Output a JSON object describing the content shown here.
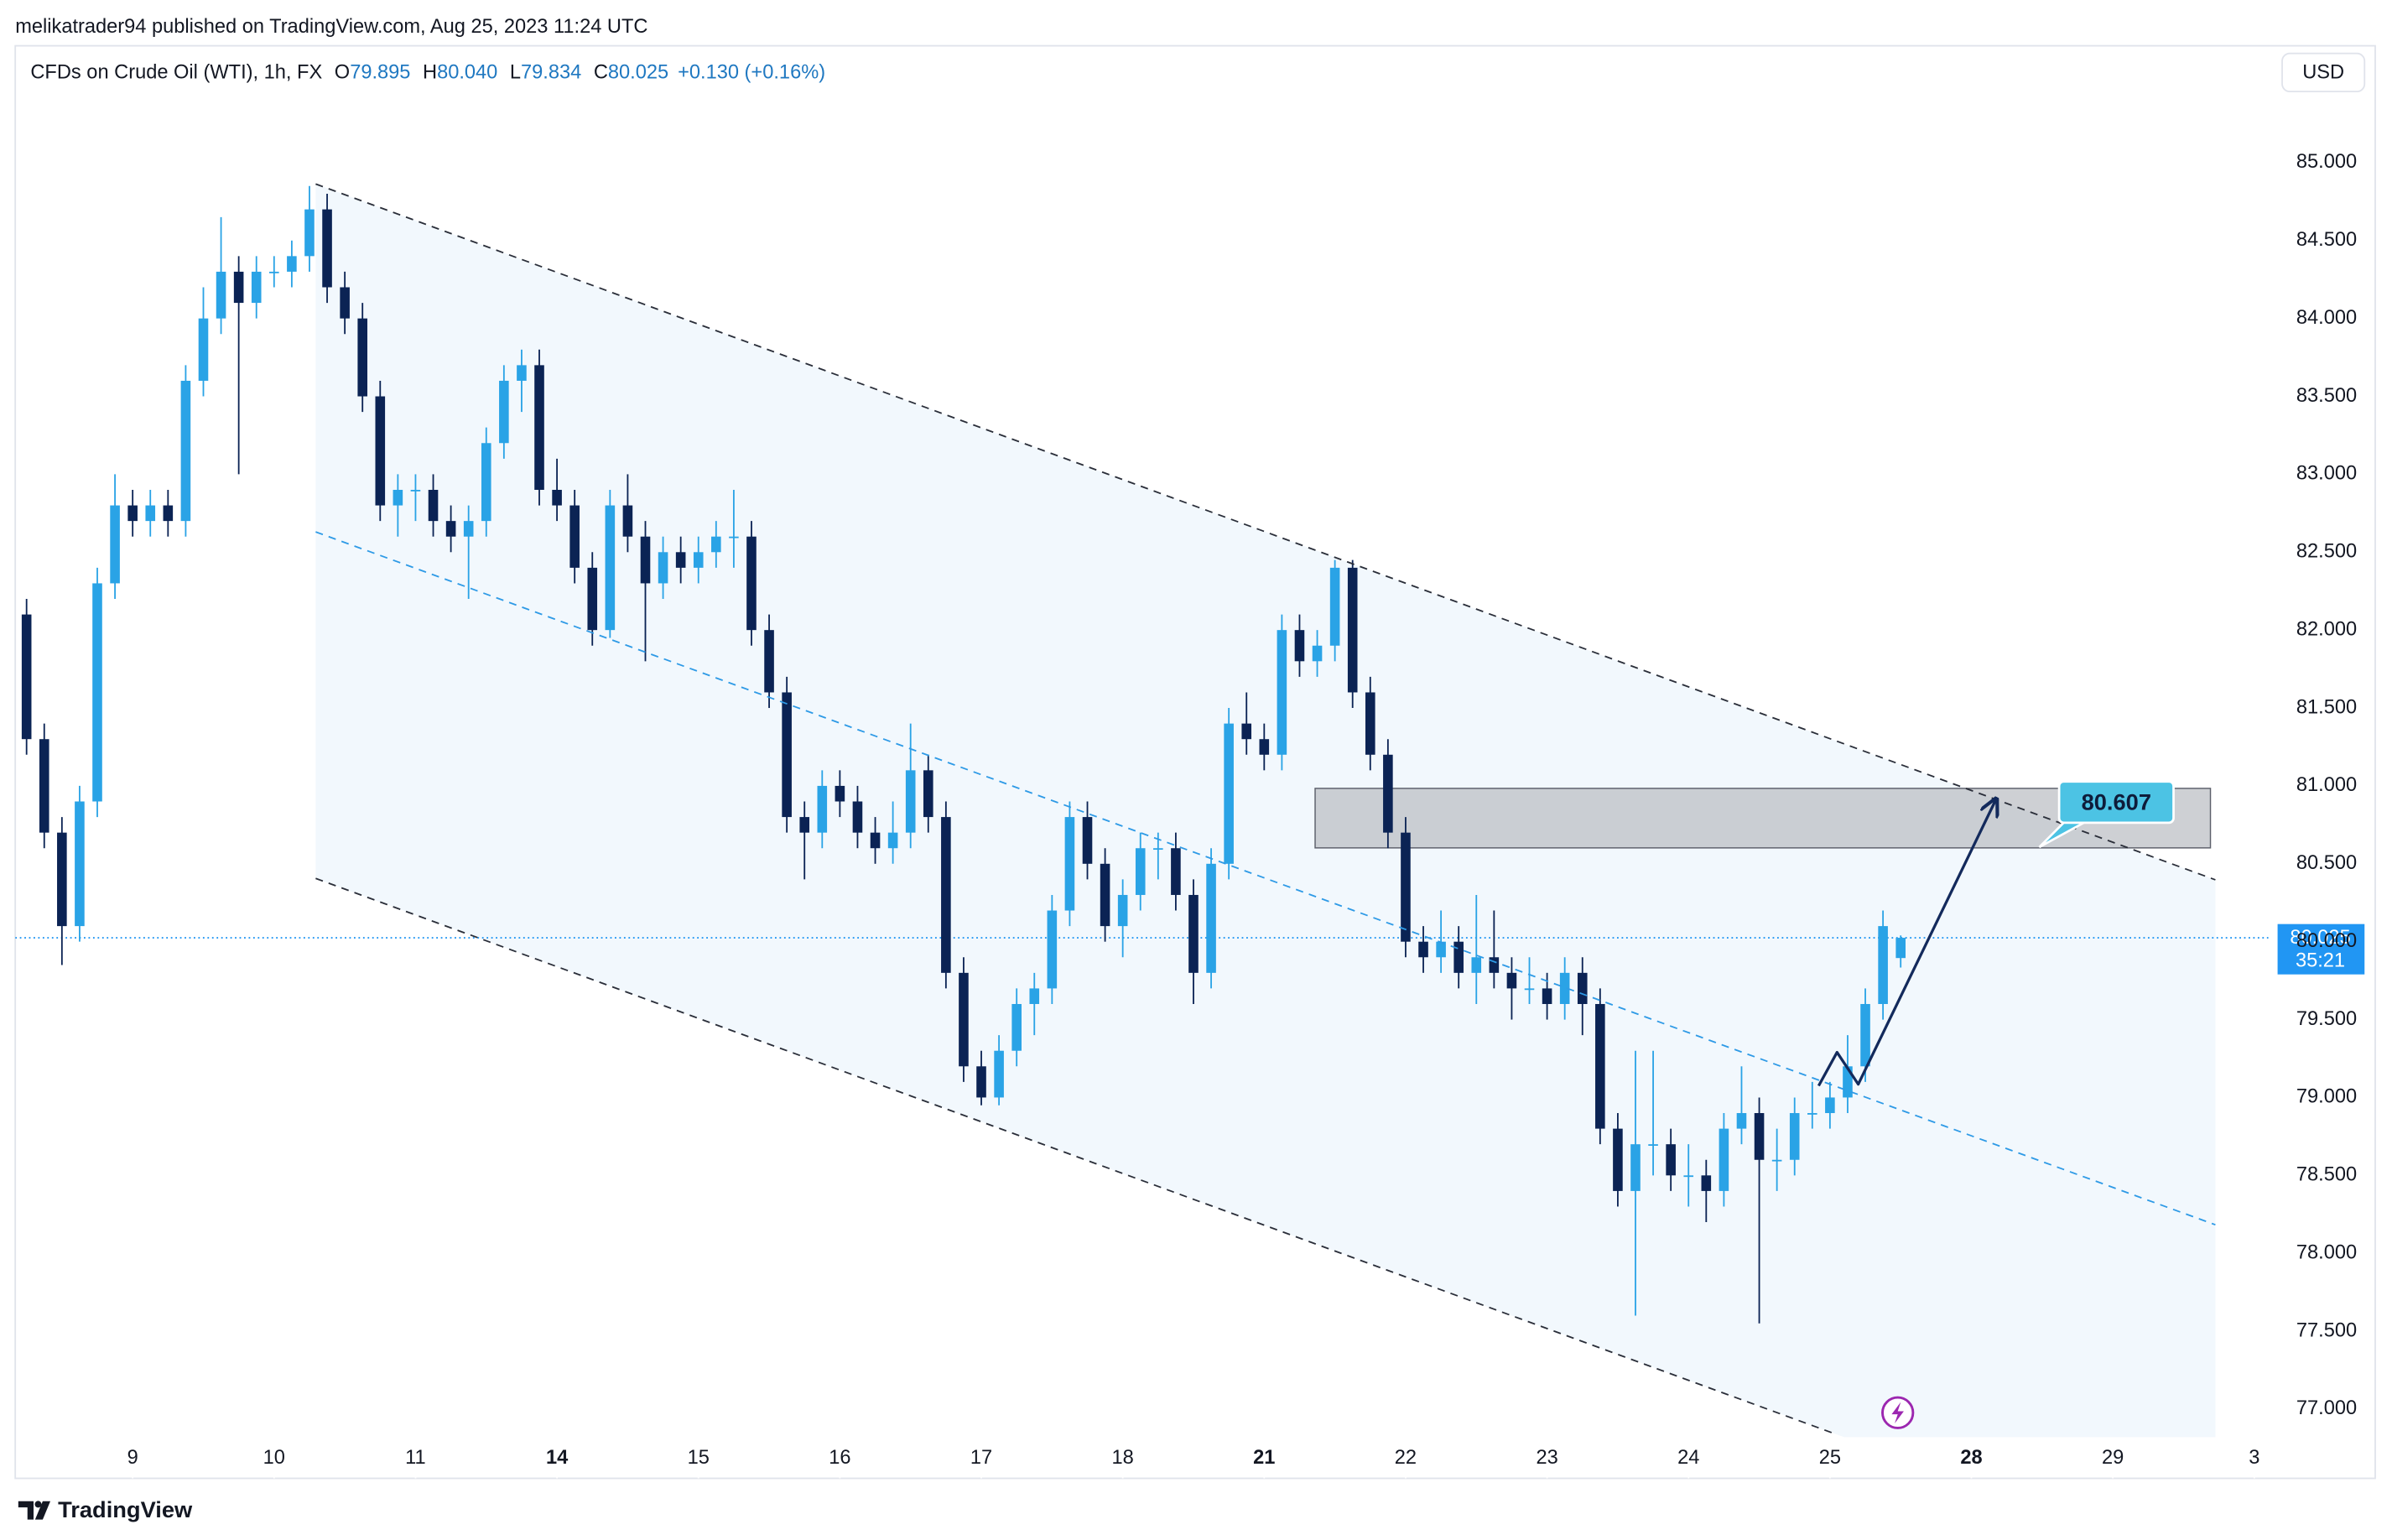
{
  "header": {
    "published": "melikatrader94 published on TradingView.com, Aug 25, 2023 11:24 UTC",
    "symbol": "CFDs on Crude Oil (WTI), 1h, FX",
    "ohlc": [
      {
        "key": "O",
        "value": "79.895"
      },
      {
        "key": "H",
        "value": "80.040"
      },
      {
        "key": "L",
        "value": "79.834"
      },
      {
        "key": "C",
        "value": "80.025"
      }
    ],
    "change": "+0.130 (+0.16%)",
    "currency": "USD"
  },
  "footer": {
    "brand": "TradingView"
  },
  "chart_data": {
    "type": "candlestick",
    "title": "CFDs on Crude Oil (WTI), 1h, FX",
    "up_color": "#2aa3e6",
    "down_color": "#0b2354",
    "xlim": [
      -0.83,
      15.1
    ],
    "xticks": [
      {
        "value": 0,
        "label": "9"
      },
      {
        "value": 1,
        "label": "10"
      },
      {
        "value": 2,
        "label": "11"
      },
      {
        "value": 3,
        "label": "14"
      },
      {
        "value": 4,
        "label": "15"
      },
      {
        "value": 5,
        "label": "16"
      },
      {
        "value": 6,
        "label": "17"
      },
      {
        "value": 7,
        "label": "18"
      },
      {
        "value": 8,
        "label": "21"
      },
      {
        "value": 9,
        "label": "22"
      },
      {
        "value": 10,
        "label": "23"
      },
      {
        "value": 11,
        "label": "24"
      },
      {
        "value": 12,
        "label": "25"
      },
      {
        "value": 13,
        "label": "28"
      },
      {
        "value": 14,
        "label": "29"
      },
      {
        "value": 15,
        "label": "3"
      }
    ],
    "ylim": [
      76.82,
      85.75
    ],
    "yticks": [
      {
        "value": 77,
        "label": "77.000"
      },
      {
        "value": 77.5,
        "label": "77.500"
      },
      {
        "value": 78,
        "label": "78.000"
      },
      {
        "value": 78.5,
        "label": "78.500"
      },
      {
        "value": 79,
        "label": "79.000"
      },
      {
        "value": 79.5,
        "label": "79.500"
      },
      {
        "value": 80,
        "label": "80.000"
      },
      {
        "value": 80.5,
        "label": "80.500"
      },
      {
        "value": 81,
        "label": "81.000"
      },
      {
        "value": 81.5,
        "label": "81.500"
      },
      {
        "value": 82,
        "label": "82.000"
      },
      {
        "value": 82.5,
        "label": "82.500"
      },
      {
        "value": 83,
        "label": "83.000"
      },
      {
        "value": 83.5,
        "label": "83.500"
      },
      {
        "value": 84,
        "label": "84.000"
      },
      {
        "value": 84.5,
        "label": "84.500"
      },
      {
        "value": 85,
        "label": "85.000"
      }
    ],
    "x": [
      -0.75,
      -0.625,
      -0.5,
      -0.375,
      -0.25,
      -0.125,
      0,
      0.125,
      0.25,
      0.375,
      0.5,
      0.625,
      0.75,
      0.875,
      1,
      1.125,
      1.25,
      1.375,
      1.5,
      1.625,
      1.75,
      1.875,
      2,
      2.125,
      2.25,
      2.375,
      2.5,
      2.625,
      2.75,
      2.875,
      3,
      3.125,
      3.25,
      3.375,
      3.5,
      3.625,
      3.75,
      3.875,
      4,
      4.125,
      4.25,
      4.375,
      4.5,
      4.625,
      4.75,
      4.875,
      5,
      5.125,
      5.25,
      5.375,
      5.5,
      5.625,
      5.75,
      5.875,
      6,
      6.125,
      6.25,
      6.375,
      6.5,
      6.625,
      6.75,
      6.875,
      7,
      7.125,
      7.25,
      7.375,
      7.5,
      7.625,
      7.75,
      7.875,
      8,
      8.125,
      8.25,
      8.375,
      8.5,
      8.625,
      8.75,
      8.875,
      9,
      9.125,
      9.25,
      9.375,
      9.5,
      9.625,
      9.75,
      9.875,
      10,
      10.125,
      10.25,
      10.375,
      10.5,
      10.625,
      10.75,
      10.875,
      11,
      11.125,
      11.25,
      11.375,
      11.5,
      11.625,
      11.75,
      11.875,
      12,
      12.125,
      12.25,
      12.375,
      12.5
    ],
    "open": [
      82.1,
      81.3,
      80.7,
      80.1,
      80.9,
      82.3,
      82.8,
      82.7,
      82.8,
      82.7,
      83.6,
      84.0,
      84.3,
      84.1,
      84.3,
      84.3,
      84.4,
      84.7,
      84.2,
      84.0,
      83.5,
      82.8,
      82.9,
      82.9,
      82.7,
      82.6,
      82.7,
      83.2,
      83.6,
      83.7,
      82.9,
      82.8,
      82.4,
      82.0,
      82.8,
      82.6,
      82.3,
      82.5,
      82.4,
      82.5,
      82.6,
      82.6,
      82.0,
      81.6,
      80.8,
      80.7,
      81.0,
      80.9,
      80.7,
      80.6,
      80.7,
      81.1,
      80.8,
      79.8,
      79.2,
      79.0,
      79.3,
      79.6,
      79.7,
      80.2,
      80.8,
      80.5,
      80.1,
      80.3,
      80.6,
      80.6,
      80.3,
      79.8,
      80.5,
      81.4,
      81.3,
      81.2,
      82.0,
      81.8,
      81.9,
      82.4,
      81.6,
      81.2,
      80.7,
      80.0,
      79.9,
      80.0,
      79.8,
      79.9,
      79.8,
      79.7,
      79.7,
      79.6,
      79.8,
      79.6,
      78.8,
      78.4,
      78.7,
      78.7,
      78.5,
      78.5,
      78.4,
      78.8,
      78.9,
      78.6,
      78.6,
      78.9,
      78.9,
      79.0,
      79.2,
      79.6,
      79.895
    ],
    "high": [
      82.2,
      81.4,
      80.8,
      81.0,
      82.4,
      83.0,
      82.9,
      82.9,
      82.9,
      83.7,
      84.2,
      84.65,
      84.4,
      84.4,
      84.4,
      84.5,
      84.85,
      84.8,
      84.3,
      84.1,
      83.6,
      83.0,
      83.0,
      83.0,
      82.8,
      82.8,
      83.3,
      83.7,
      83.8,
      83.8,
      83.1,
      82.9,
      82.5,
      82.9,
      83.0,
      82.7,
      82.6,
      82.6,
      82.6,
      82.7,
      82.9,
      82.7,
      82.1,
      81.7,
      80.9,
      81.1,
      81.1,
      81.0,
      80.8,
      80.9,
      81.4,
      81.2,
      80.9,
      79.9,
      79.3,
      79.4,
      79.7,
      79.8,
      80.3,
      80.9,
      80.9,
      80.6,
      80.4,
      80.7,
      80.7,
      80.7,
      80.4,
      80.6,
      81.5,
      81.6,
      81.4,
      82.1,
      82.1,
      82.0,
      82.45,
      82.45,
      81.7,
      81.3,
      80.8,
      80.1,
      80.2,
      80.1,
      80.3,
      80.2,
      79.9,
      79.9,
      79.8,
      79.9,
      79.9,
      79.7,
      78.9,
      79.3,
      79.3,
      78.8,
      78.7,
      78.6,
      78.9,
      79.2,
      79.0,
      78.8,
      79.0,
      79.1,
      79.1,
      79.4,
      79.7,
      80.2,
      80.04
    ],
    "low": [
      81.2,
      80.6,
      79.85,
      80.0,
      80.8,
      82.2,
      82.6,
      82.6,
      82.6,
      82.6,
      83.5,
      83.9,
      83.0,
      84.0,
      84.2,
      84.2,
      84.3,
      84.1,
      83.9,
      83.4,
      82.7,
      82.6,
      82.7,
      82.6,
      82.5,
      82.2,
      82.6,
      83.1,
      83.4,
      82.8,
      82.7,
      82.3,
      81.9,
      81.95,
      82.5,
      81.8,
      82.2,
      82.3,
      82.3,
      82.4,
      82.4,
      81.9,
      81.5,
      80.7,
      80.4,
      80.6,
      80.8,
      80.6,
      80.5,
      80.5,
      80.6,
      80.7,
      79.7,
      79.1,
      78.95,
      78.95,
      79.2,
      79.4,
      79.6,
      80.1,
      80.4,
      80.0,
      79.9,
      80.2,
      80.4,
      80.2,
      79.6,
      79.7,
      80.4,
      81.2,
      81.1,
      81.1,
      81.7,
      81.7,
      81.8,
      81.5,
      81.1,
      80.6,
      79.9,
      79.8,
      79.8,
      79.7,
      79.6,
      79.7,
      79.5,
      79.6,
      79.5,
      79.5,
      79.4,
      78.7,
      78.3,
      77.6,
      78.5,
      78.4,
      78.3,
      78.2,
      78.3,
      78.7,
      77.55,
      78.4,
      78.5,
      78.8,
      78.8,
      78.9,
      79.1,
      79.5,
      79.834
    ],
    "close": [
      81.3,
      80.7,
      80.1,
      80.9,
      82.3,
      82.8,
      82.7,
      82.8,
      82.7,
      83.6,
      84.0,
      84.3,
      84.1,
      84.3,
      84.3,
      84.4,
      84.7,
      84.2,
      84.0,
      83.5,
      82.8,
      82.9,
      82.9,
      82.7,
      82.6,
      82.7,
      83.2,
      83.6,
      83.7,
      82.9,
      82.8,
      82.4,
      82.0,
      82.8,
      82.6,
      82.3,
      82.5,
      82.4,
      82.5,
      82.6,
      82.6,
      82.0,
      81.6,
      80.8,
      80.7,
      81.0,
      80.9,
      80.7,
      80.6,
      80.7,
      81.1,
      80.8,
      79.8,
      79.2,
      79.0,
      79.3,
      79.6,
      79.7,
      80.2,
      80.8,
      80.5,
      80.1,
      80.3,
      80.6,
      80.6,
      80.3,
      79.8,
      80.5,
      81.4,
      81.3,
      81.2,
      82.0,
      81.8,
      81.9,
      82.4,
      81.6,
      81.2,
      80.7,
      80.0,
      79.9,
      80.0,
      79.8,
      79.9,
      79.8,
      79.7,
      79.7,
      79.6,
      79.8,
      79.6,
      78.8,
      78.4,
      78.7,
      78.7,
      78.5,
      78.5,
      78.4,
      78.8,
      78.9,
      78.6,
      78.6,
      78.9,
      78.9,
      79.0,
      79.2,
      79.6,
      80.1,
      80.025
    ],
    "last_price": {
      "value": 80.025,
      "label": "80.025",
      "countdown": "35:21"
    },
    "channel": {
      "upper": {
        "x": [
          1.294,
          14.725
        ],
        "y": [
          84.863,
          80.397
        ]
      },
      "middle": {
        "x": [
          1.294,
          14.725
        ],
        "y": [
          82.63,
          78.183
        ]
      },
      "lower": {
        "x": [
          1.294,
          12.04
        ],
        "y": [
          80.406,
          76.84
        ]
      }
    },
    "zone": {
      "x": [
        8.36,
        14.69
      ],
      "y": [
        80.602,
        80.984
      ]
    },
    "arrow": {
      "x": [
        11.92,
        12.05,
        12.2,
        13.17
      ],
      "y": [
        79.075,
        79.29,
        79.085,
        80.906
      ]
    },
    "target": {
      "x": 13.48,
      "value": 80.607,
      "label": "80.607"
    }
  }
}
